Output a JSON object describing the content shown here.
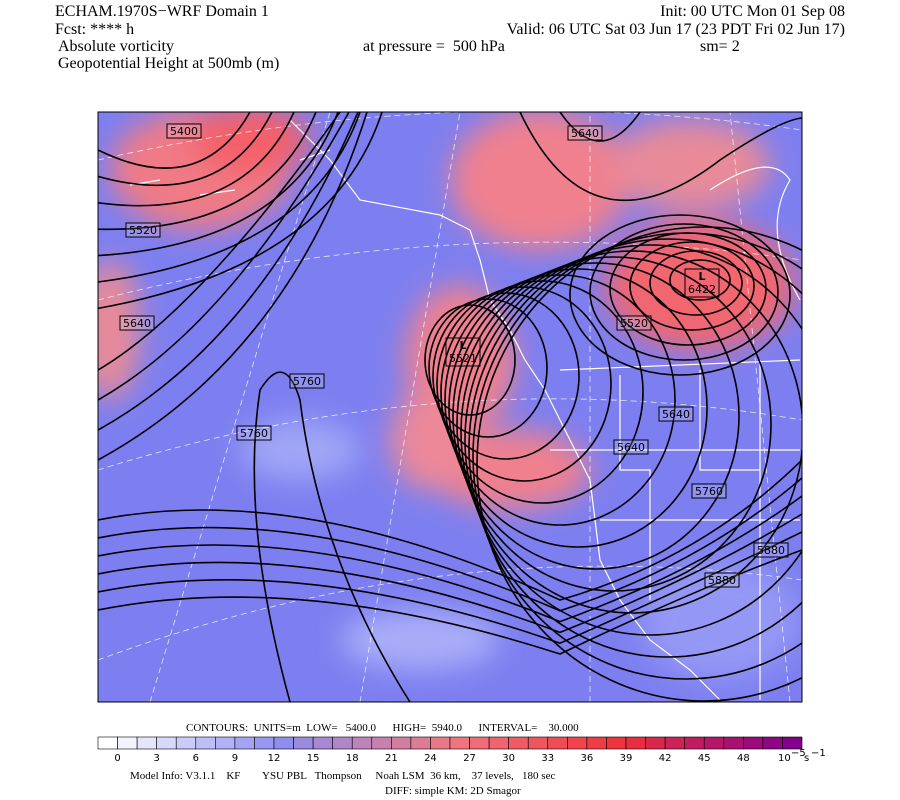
{
  "header": {
    "title": "ECHAM.1970S−WRF Domain 1",
    "forecast": "Fcst: **** h",
    "field1": "Absolute vorticity",
    "field2": "Geopotential Height at 500mb (m)",
    "init": "Init: 00 UTC Mon 01 Sep 08",
    "valid": "Valid: 06 UTC Sat 03 Jun 17 (23 PDT Fri 02 Jun 17)",
    "pressure": "at pressure =  500 hPa",
    "smoothing": "sm= 2"
  },
  "map": {
    "contour_labels": [
      "5400",
      "5640",
      "5520",
      "5640",
      "5520",
      "5760",
      "5760",
      "5640",
      "5640",
      "5760",
      "5880",
      "5880"
    ],
    "lows": [
      {
        "symbol": "L",
        "value": "5521"
      },
      {
        "symbol": "L",
        "value": "6422"
      }
    ]
  },
  "colorbar": {
    "labels": [
      0,
      3,
      6,
      9,
      12,
      15,
      18,
      21,
      24,
      27,
      30,
      33,
      36,
      39,
      42,
      45,
      48
    ],
    "unit_base": "10",
    "unit_exp": "−5",
    "unit": "s",
    "unit_unit_exp": "−1"
  },
  "footer": {
    "contours": "CONTOURS:  UNITS=m  LOW=   5400.0      HIGH=  5940.0      INTERVAL=    30.000",
    "model_info": "Model Info: V3.1.1    KF        YSU PBL   Thompson     Noah LSM  36 km,    37 levels,   180 sec",
    "diff": "DIFF: simple KM: 2D Smagor"
  }
}
